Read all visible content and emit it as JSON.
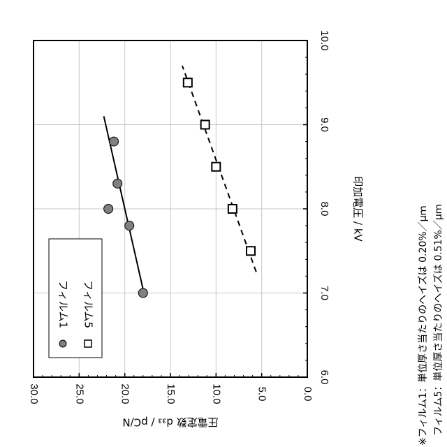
{
  "chart_data": {
    "type": "scatter",
    "x_axis_label": "印加電圧 / kV",
    "y_axis_label": "圧電定数 d₃₃ / pC/N",
    "xlim": [
      6.0,
      10.0
    ],
    "ylim": [
      0.0,
      30.0
    ],
    "x_ticks": [
      "6.0",
      "7.0",
      "8.0",
      "9.0",
      "10.0"
    ],
    "y_ticks": [
      "0.0",
      "5.0",
      "10.0",
      "15.0",
      "20.0",
      "25.0",
      "30.0"
    ],
    "x_tick_values": [
      6.0,
      7.0,
      8.0,
      9.0,
      10.0
    ],
    "y_tick_values": [
      0,
      5,
      10,
      15,
      20,
      25,
      30
    ],
    "grid": true,
    "legend_position": "bottom-left",
    "series": [
      {
        "name": "フィルム1",
        "marker": "circle",
        "color": "#808080",
        "x": [
          7.0,
          7.8,
          8.0,
          8.3,
          8.8
        ],
        "y": [
          18.0,
          19.5,
          21.8,
          20.8,
          21.2
        ],
        "trend": {
          "style": "solid",
          "x": [
            6.95,
            9.1
          ],
          "y": [
            17.8,
            22.3
          ]
        }
      },
      {
        "name": "フィルム5",
        "marker": "square",
        "color": "#ffffff",
        "x": [
          7.5,
          8.0,
          8.5,
          9.0,
          9.5
        ],
        "y": [
          6.2,
          8.2,
          10.0,
          11.2,
          13.1
        ],
        "trend": {
          "style": "dashed",
          "x": [
            7.25,
            9.7
          ],
          "y": [
            5.6,
            13.7
          ]
        }
      }
    ],
    "notes": [
      "※フィルム1：単位厚さ当たりのヘイズは 0.20%／μｍ",
      "フィルム5：単位厚さ当たりのヘイズは 0.51%／μｍ"
    ]
  }
}
